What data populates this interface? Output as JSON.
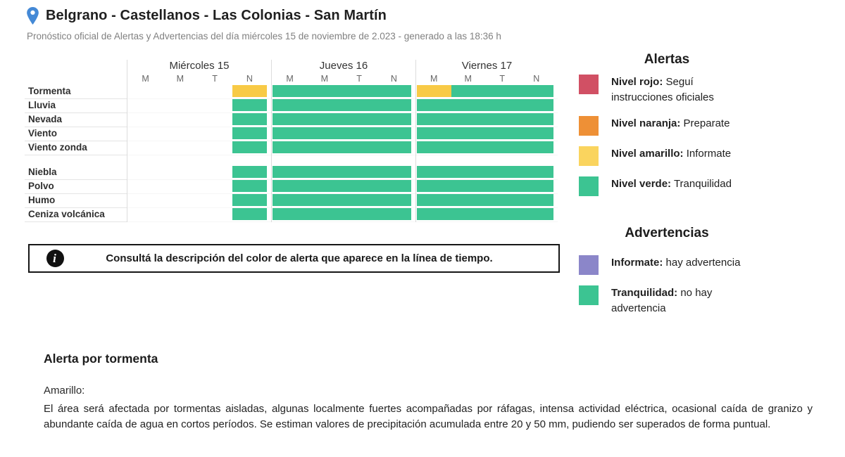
{
  "header": {
    "title": "Belgrano - Castellanos - Las Colonias - San Martín",
    "subtitle": "Pronóstico oficial de Alertas y Advertencias del día miércoles 15 de noviembre de 2.023 - generado a las 18:36 h",
    "pin_icon": "location-pin-icon",
    "pin_color": "#4489D6"
  },
  "timeline": {
    "period_labels": [
      "M",
      "M",
      "T",
      "N"
    ],
    "days": [
      {
        "label": "Miércoles 15"
      },
      {
        "label": "Jueves 16"
      },
      {
        "label": "Viernes 17"
      }
    ],
    "colors": {
      "g": "#3CC492",
      "y": "#F8CA46"
    },
    "row_groups": [
      {
        "rows": [
          {
            "label": "Tormenta",
            "days": [
              [
                "w",
                "w",
                "w",
                "y"
              ],
              [
                "g",
                "g",
                "g",
                "g"
              ],
              [
                "y",
                "g",
                "g",
                "g"
              ]
            ]
          },
          {
            "label": "Lluvia",
            "days": [
              [
                "w",
                "w",
                "w",
                "g"
              ],
              [
                "g",
                "g",
                "g",
                "g"
              ],
              [
                "g",
                "g",
                "g",
                "g"
              ]
            ]
          },
          {
            "label": "Nevada",
            "days": [
              [
                "w",
                "w",
                "w",
                "g"
              ],
              [
                "g",
                "g",
                "g",
                "g"
              ],
              [
                "g",
                "g",
                "g",
                "g"
              ]
            ]
          },
          {
            "label": "Viento",
            "days": [
              [
                "w",
                "w",
                "w",
                "g"
              ],
              [
                "g",
                "g",
                "g",
                "g"
              ],
              [
                "g",
                "g",
                "g",
                "g"
              ]
            ]
          },
          {
            "label": "Viento zonda",
            "days": [
              [
                "w",
                "w",
                "w",
                "g"
              ],
              [
                "g",
                "g",
                "g",
                "g"
              ],
              [
                "g",
                "g",
                "g",
                "g"
              ]
            ]
          }
        ]
      },
      {
        "rows": [
          {
            "label": "Niebla",
            "days": [
              [
                "w",
                "w",
                "w",
                "g"
              ],
              [
                "g",
                "g",
                "g",
                "g"
              ],
              [
                "g",
                "g",
                "g",
                "g"
              ]
            ]
          },
          {
            "label": "Polvo",
            "days": [
              [
                "w",
                "w",
                "w",
                "g"
              ],
              [
                "g",
                "g",
                "g",
                "g"
              ],
              [
                "g",
                "g",
                "g",
                "g"
              ]
            ]
          },
          {
            "label": "Humo",
            "days": [
              [
                "w",
                "w",
                "w",
                "g"
              ],
              [
                "g",
                "g",
                "g",
                "g"
              ],
              [
                "g",
                "g",
                "g",
                "g"
              ]
            ]
          },
          {
            "label": "Ceniza volcánica",
            "days": [
              [
                "w",
                "w",
                "w",
                "g"
              ],
              [
                "g",
                "g",
                "g",
                "g"
              ],
              [
                "g",
                "g",
                "g",
                "g"
              ]
            ]
          }
        ]
      }
    ]
  },
  "info_box": {
    "icon": "info-icon",
    "text": "Consultá la descripción del color de alerta que aparece en la línea de tiempo."
  },
  "legend": {
    "alerts": {
      "title": "Alertas",
      "items": [
        {
          "label": "Nivel rojo:",
          "description": "Seguí instrucciones oficiales",
          "color": "#D15064"
        },
        {
          "label": "Nivel naranja:",
          "description": "Preparate",
          "color": "#EE9036"
        },
        {
          "label": "Nivel amarillo:",
          "description": "Informate",
          "color": "#FAD45E"
        },
        {
          "label": "Nivel verde:",
          "description": "Tranquilidad",
          "color": "#3CC492"
        }
      ]
    },
    "advisories": {
      "title": "Advertencias",
      "items": [
        {
          "label": "Informate:",
          "description": "hay advertencia",
          "color": "#8B86C9"
        },
        {
          "label": "Tranquilidad:",
          "description": "no hay advertencia",
          "color": "#3CC492"
        }
      ]
    }
  },
  "alert_detail": {
    "title": "Alerta por tormenta",
    "level": "Amarillo:",
    "description": "El área será afectada por tormentas aisladas, algunas localmente fuertes acompañadas por ráfagas, intensa actividad eléctrica, ocasional caída de granizo y abundante caída de agua en cortos períodos. Se estiman valores de precipitación acumulada entre 20 y 50 mm, pudiendo ser superados de forma puntual."
  }
}
